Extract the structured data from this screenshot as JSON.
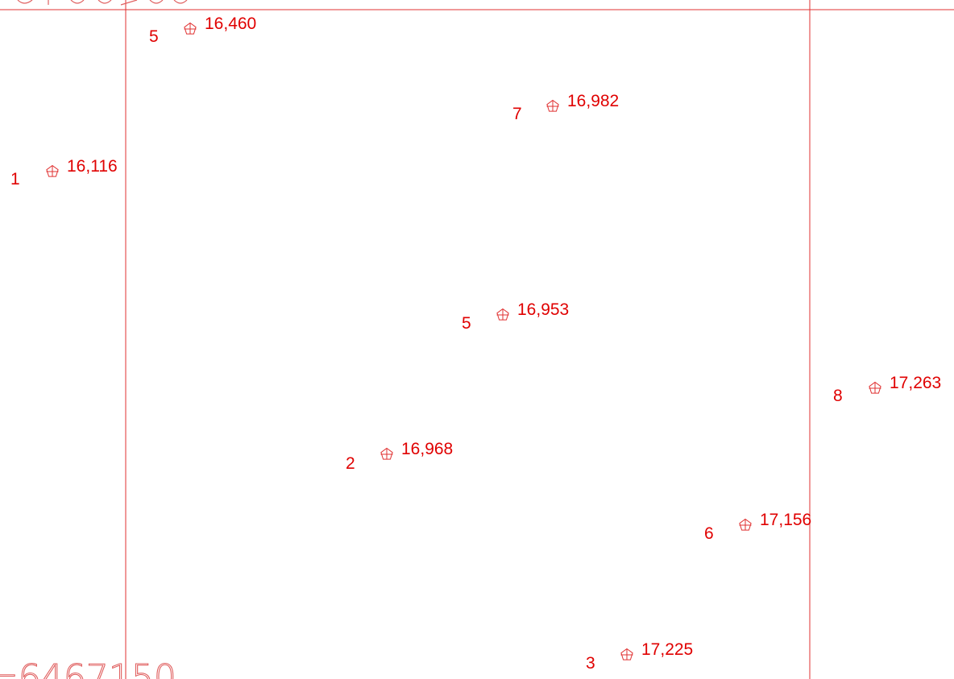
{
  "colors": {
    "line": "#e03030",
    "text": "#e00000",
    "coord": "#e06060"
  },
  "coordinate_labels": [
    {
      "id": "bottom-left",
      "text": "=6467150"
    }
  ],
  "survey_points": [
    {
      "number": "5",
      "value": "16,460"
    },
    {
      "number": "7",
      "value": "16,982"
    },
    {
      "number": "1",
      "value": "16,116"
    },
    {
      "number": "5",
      "value": "16,953"
    },
    {
      "number": "8",
      "value": "17,263"
    },
    {
      "number": "2",
      "value": "16,968"
    },
    {
      "number": "6",
      "value": "17,156"
    },
    {
      "number": "3",
      "value": "17,225"
    }
  ]
}
